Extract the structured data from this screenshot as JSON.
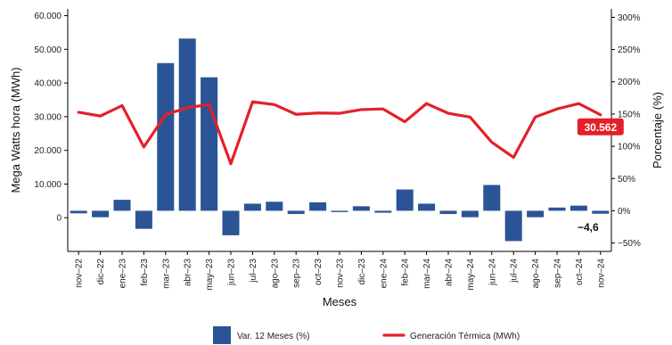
{
  "chart_data": {
    "type": "bar+line",
    "xlabel": "Meses",
    "ylabel_left": "Mega Watts hora (MWh)",
    "ylabel_right": "Porcentaje (%)",
    "categories": [
      "nov–22",
      "dic–22",
      "ene–23",
      "feb–23",
      "mar–23",
      "abr–23",
      "may–23",
      "jun–23",
      "jul–23",
      "ago–23",
      "sep–23",
      "oct–23",
      "nov–23",
      "dic–23",
      "ene–24",
      "feb–24",
      "mar–24",
      "abr–24",
      "may–24",
      "jun–24",
      "jul–24",
      "ago–24",
      "sep–24",
      "oct–24",
      "nov–24"
    ],
    "left_axis": {
      "ylim": [
        -10000,
        62000
      ],
      "ticks": [
        0,
        10000,
        20000,
        30000,
        40000,
        50000,
        60000
      ],
      "tick_labels": [
        "0",
        "10.000",
        "20.000",
        "30.000",
        "40.000",
        "50.000",
        "60.000"
      ]
    },
    "right_axis": {
      "ylim": [
        -63,
        313
      ],
      "ticks": [
        -50,
        0,
        50,
        100,
        150,
        200,
        250,
        300
      ],
      "tick_labels": [
        "−50%",
        "0%",
        "50%",
        "100%",
        "150%",
        "200%",
        "250%",
        "300%"
      ]
    },
    "series": [
      {
        "name": "Var. 12 Meses (%)",
        "type": "bar",
        "axis": "right",
        "color": "#2b5496",
        "values": [
          -4,
          -10,
          17,
          -28,
          229,
          267,
          207,
          -38,
          11,
          14,
          -5,
          13,
          -2,
          7,
          -3,
          33,
          11,
          -5,
          -10,
          40,
          -47,
          -10,
          5,
          8,
          -4.6
        ]
      },
      {
        "name": "Generación Térmica (MWh)",
        "type": "line",
        "axis": "left",
        "color": "#e3202a",
        "values": [
          31300,
          30200,
          33300,
          21000,
          30600,
          32700,
          33600,
          16000,
          34400,
          33600,
          30700,
          31100,
          31000,
          32100,
          32300,
          28500,
          33900,
          31000,
          29900,
          22400,
          17900,
          29900,
          32300,
          33900,
          30562
        ]
      }
    ],
    "annotations": {
      "last_line_value": "30.562",
      "last_bar_value": "−4,6"
    },
    "legend": {
      "placement": "bottom",
      "items": [
        "Var. 12 Meses (%)",
        "Generación Térmica (MWh)"
      ]
    },
    "grid": false
  }
}
